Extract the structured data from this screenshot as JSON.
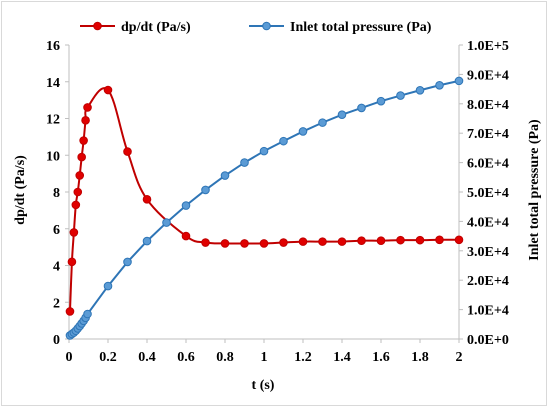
{
  "chart_data": {
    "type": "line",
    "title": "",
    "xlabel": "t (s)",
    "ylabel_left": "dp/dt (Pa/s)",
    "ylabel_right": "Inlet total pressure (Pa)",
    "xlim": [
      0,
      2
    ],
    "ylim_left": [
      0,
      16
    ],
    "ylim_right": [
      0,
      100000
    ],
    "x_ticks": [
      "0",
      "0.2",
      "0.4",
      "0.6",
      "0.8",
      "1",
      "1.2",
      "1.4",
      "1.6",
      "1.8",
      "2"
    ],
    "y_left_ticks": [
      "0",
      "2",
      "4",
      "6",
      "8",
      "10",
      "12",
      "14",
      "16"
    ],
    "y_right_ticks": [
      "0.0E+0",
      "1.0E+4",
      "2.0E+4",
      "3.0E+4",
      "4.0E+4",
      "5.0E+4",
      "6.0E+4",
      "7.0E+4",
      "8.0E+4",
      "9.0E+4",
      "1.0E+5"
    ],
    "grid": false,
    "legend_position": "top",
    "series": [
      {
        "name": "dp/dt (Pa/s)",
        "axis": "left",
        "color": "#c00000",
        "marker_fill": "#e00000",
        "smooth": true,
        "x": [
          0.005,
          0.015,
          0.025,
          0.035,
          0.045,
          0.055,
          0.065,
          0.075,
          0.085,
          0.095,
          0.2,
          0.3,
          0.4,
          0.6,
          0.7,
          0.8,
          0.9,
          1.0,
          1.1,
          1.2,
          1.3,
          1.4,
          1.5,
          1.6,
          1.7,
          1.8,
          1.9,
          2.0
        ],
        "y": [
          1.5,
          4.2,
          5.8,
          7.3,
          8.0,
          8.9,
          9.9,
          10.8,
          11.9,
          12.6,
          13.55,
          10.2,
          7.6,
          5.6,
          5.25,
          5.2,
          5.2,
          5.2,
          5.25,
          5.3,
          5.3,
          5.3,
          5.35,
          5.35,
          5.38,
          5.38,
          5.4,
          5.4
        ]
      },
      {
        "name": "Inlet total pressure (Pa)",
        "axis": "right",
        "color": "#2e75b6",
        "marker_fill": "#5b9bd5",
        "smooth": false,
        "x": [
          0.005,
          0.015,
          0.025,
          0.035,
          0.045,
          0.055,
          0.065,
          0.075,
          0.085,
          0.095,
          0.2,
          0.3,
          0.4,
          0.5,
          0.6,
          0.7,
          0.8,
          0.9,
          1.0,
          1.1,
          1.2,
          1.3,
          1.4,
          1.5,
          1.6,
          1.7,
          1.8,
          1.9,
          2.0
        ],
        "y": [
          1200,
          1700,
          2200,
          2800,
          3600,
          4400,
          5300,
          6200,
          7200,
          8500,
          18000,
          26200,
          33300,
          39600,
          45400,
          50700,
          55600,
          60000,
          63900,
          67300,
          70600,
          73600,
          76300,
          78600,
          80900,
          82800,
          84600,
          86300,
          87800
        ]
      }
    ]
  }
}
